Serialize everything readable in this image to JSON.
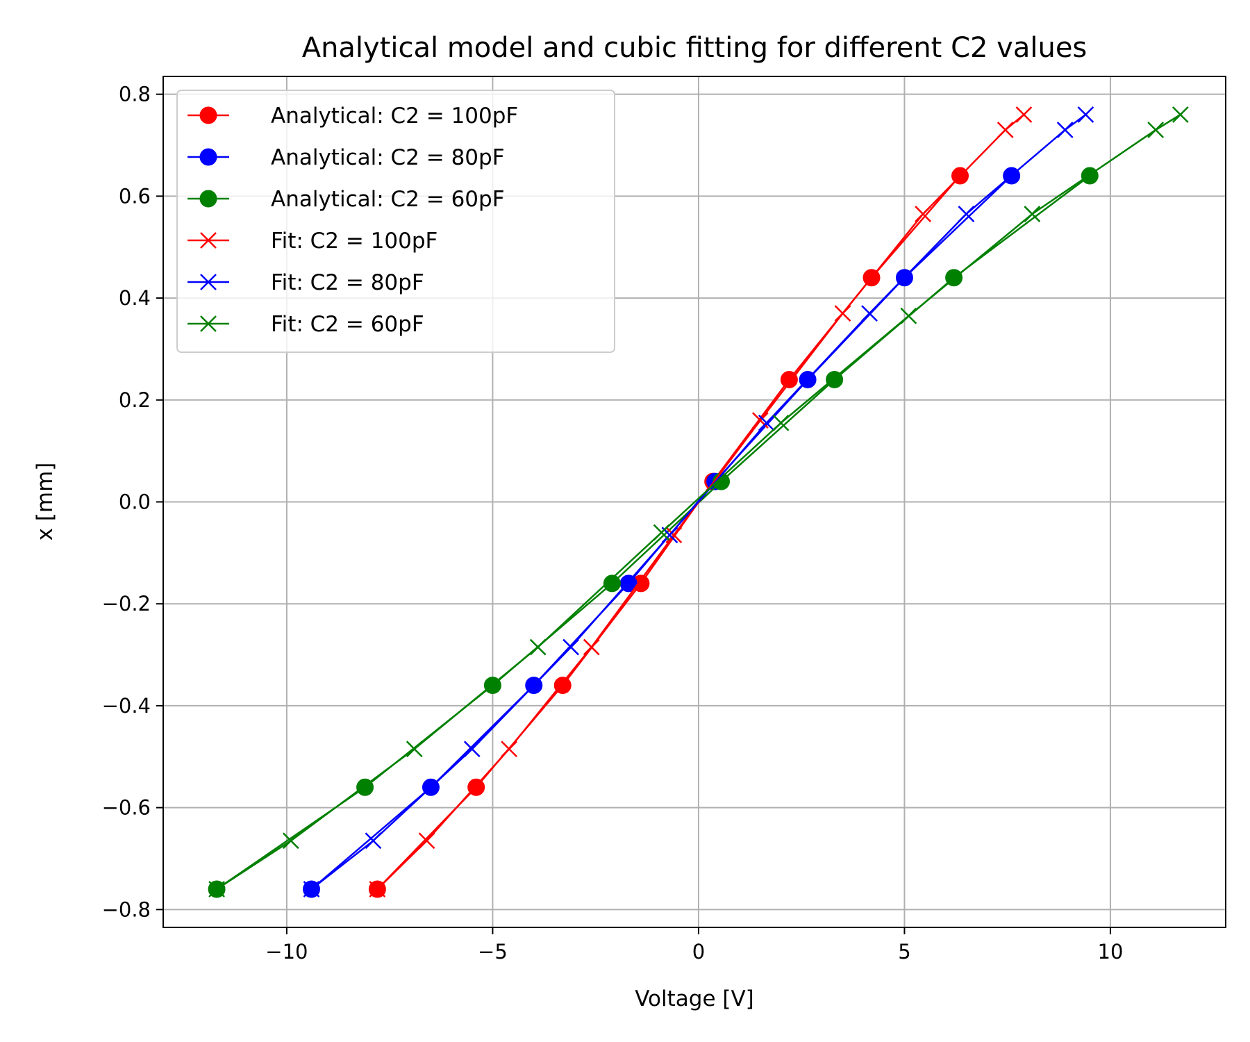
{
  "chart_data": {
    "type": "line",
    "title": "Analytical model and cubic fitting for different C2 values",
    "xlabel": "Voltage [V]",
    "ylabel": "x [mm]",
    "xlim": [
      -13.0,
      12.8
    ],
    "ylim": [
      -0.835,
      0.835
    ],
    "xticks": [
      -10,
      -5,
      0,
      5,
      10
    ],
    "xtick_labels": [
      "−10",
      "−5",
      "0",
      "5",
      "10"
    ],
    "yticks": [
      -0.8,
      -0.6,
      -0.4,
      -0.2,
      0.0,
      0.2,
      0.4,
      0.6,
      0.8
    ],
    "ytick_labels": [
      "−0.8",
      "−0.6",
      "−0.4",
      "−0.2",
      "0.0",
      "0.2",
      "0.4",
      "0.6",
      "0.8"
    ],
    "grid": true,
    "legend_position": "top-left",
    "series": [
      {
        "name": "Analytical: C2 = 100pF",
        "color": "#ff0000",
        "marker": "circle",
        "x": [
          -7.8,
          -5.4,
          -3.3,
          -1.4,
          0.35,
          2.2,
          4.2,
          6.35
        ],
        "y": [
          -0.76,
          -0.56,
          -0.36,
          -0.16,
          0.04,
          0.24,
          0.44,
          0.64
        ]
      },
      {
        "name": "Analytical: C2 = 80pF",
        "color": "#0000ff",
        "marker": "circle",
        "x": [
          -9.4,
          -6.5,
          -4.0,
          -1.7,
          0.4,
          2.65,
          5.0,
          7.6
        ],
        "y": [
          -0.76,
          -0.56,
          -0.36,
          -0.16,
          0.04,
          0.24,
          0.44,
          0.64
        ]
      },
      {
        "name": "Analytical: C2 = 60pF",
        "color": "#008000",
        "marker": "circle",
        "x": [
          -11.7,
          -8.1,
          -5.0,
          -2.1,
          0.55,
          3.3,
          6.2,
          9.5
        ],
        "y": [
          -0.76,
          -0.56,
          -0.36,
          -0.16,
          0.04,
          0.24,
          0.44,
          0.64
        ]
      },
      {
        "name": "Fit: C2 = 100pF",
        "color": "#ff0000",
        "marker": "x",
        "x": [
          -7.8,
          -6.6,
          -4.6,
          -2.6,
          -0.6,
          1.5,
          3.5,
          5.45,
          7.45,
          7.9
        ],
        "y": [
          -0.76,
          -0.665,
          -0.485,
          -0.285,
          -0.065,
          0.16,
          0.37,
          0.565,
          0.73,
          0.76
        ]
      },
      {
        "name": "Fit: C2 = 80pF",
        "color": "#0000ff",
        "marker": "x",
        "x": [
          -9.4,
          -7.9,
          -5.5,
          -3.1,
          -0.7,
          1.65,
          4.15,
          6.5,
          8.9,
          9.4
        ],
        "y": [
          -0.76,
          -0.665,
          -0.485,
          -0.285,
          -0.065,
          0.155,
          0.37,
          0.565,
          0.73,
          0.76
        ]
      },
      {
        "name": "Fit: C2 = 60pF",
        "color": "#008000",
        "marker": "x",
        "x": [
          -11.7,
          -9.9,
          -6.9,
          -3.9,
          -0.9,
          2.0,
          5.1,
          8.1,
          11.1,
          11.7
        ],
        "y": [
          -0.76,
          -0.665,
          -0.485,
          -0.285,
          -0.06,
          0.155,
          0.365,
          0.565,
          0.73,
          0.76
        ]
      }
    ]
  }
}
